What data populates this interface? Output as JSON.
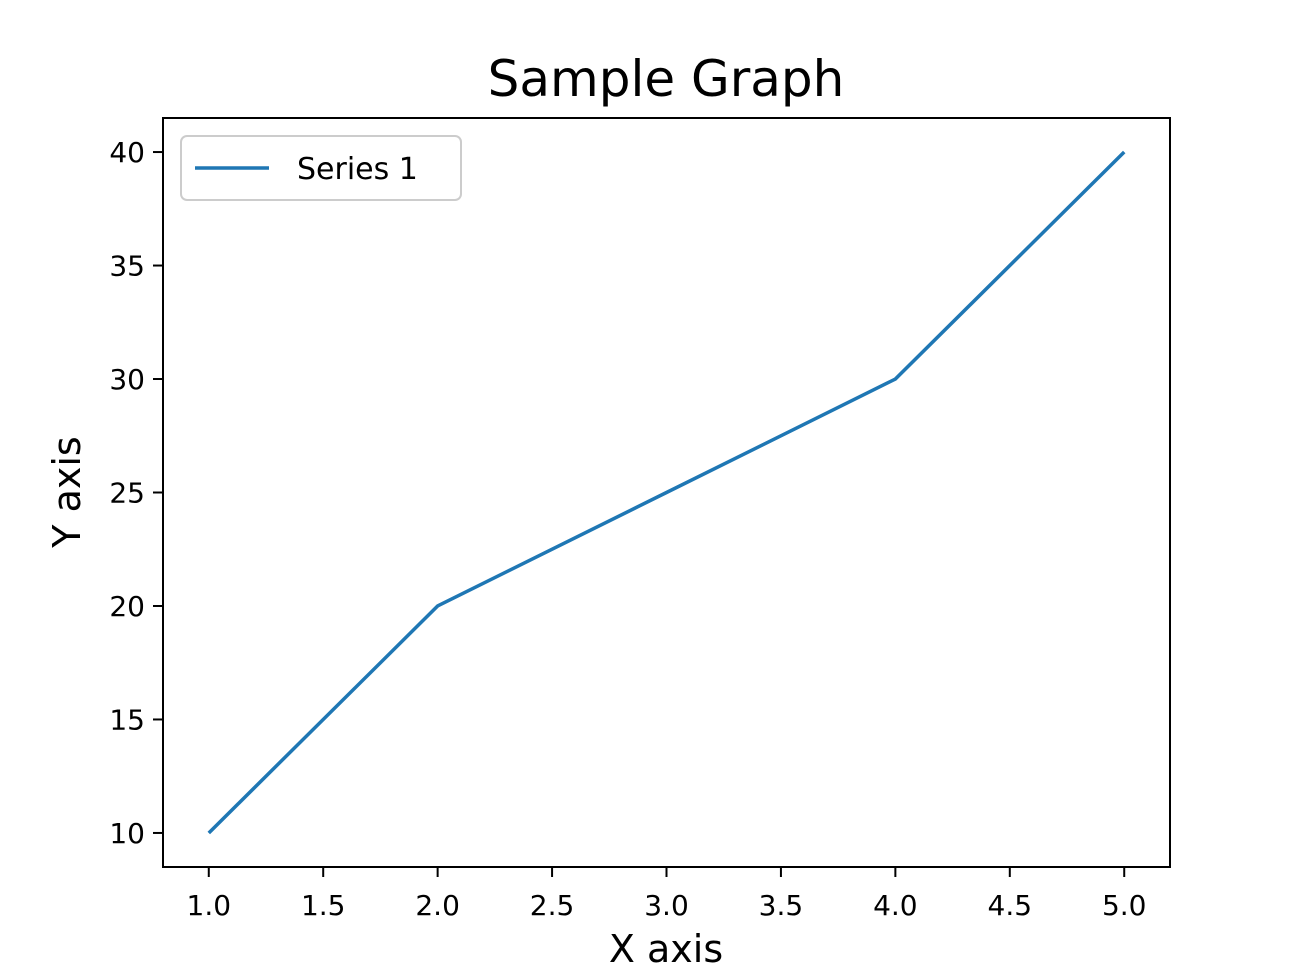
{
  "chart_data": {
    "type": "line",
    "title": "Sample Graph",
    "x_label": "X axis",
    "y_label": "Y axis",
    "x": [
      1,
      2,
      3,
      4,
      5
    ],
    "series": [
      {
        "name": "Series 1",
        "color": "#1f77b4",
        "values": [
          10,
          20,
          25,
          30,
          40
        ]
      }
    ],
    "xlim": [
      0.8,
      5.2
    ],
    "xticks": [
      {
        "value": 1,
        "label": "1.0"
      },
      {
        "value": 1.5,
        "label": "1.5"
      },
      {
        "value": 2,
        "label": "2.0"
      },
      {
        "value": 2.5,
        "label": "2.5"
      },
      {
        "value": 3,
        "label": "3.0"
      },
      {
        "value": 3.5,
        "label": "3.5"
      },
      {
        "value": 4,
        "label": "4.0"
      },
      {
        "value": 4.5,
        "label": "4.5"
      },
      {
        "value": 5,
        "label": "5.0"
      }
    ],
    "ylim": [
      8.5,
      41.5
    ],
    "yticks": [
      10,
      15,
      20,
      25,
      30,
      35,
      40
    ],
    "legend": "upper left",
    "grid": false
  }
}
